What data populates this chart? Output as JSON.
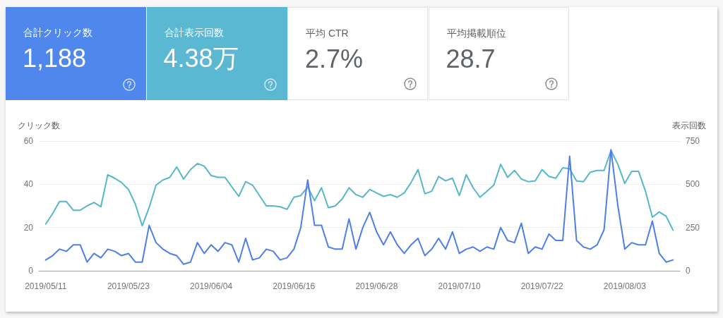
{
  "chart_data": [
    {
      "type": "other",
      "title": "合計クリック数",
      "annotations": [
        "1,188"
      ],
      "color": "#4f87ec"
    },
    {
      "type": "other",
      "title": "合計表示回数",
      "annotations": [
        "4.38万"
      ],
      "color": "#5ab8d3"
    },
    {
      "type": "other",
      "title": "平均 CTR",
      "annotations": [
        "2.7%"
      ]
    },
    {
      "type": "other",
      "title": "平均掲載順位",
      "annotations": [
        "28.7"
      ]
    },
    {
      "type": "line",
      "ylabel": "クリック数",
      "y2label": "表示回数",
      "x": [
        "2019-05-11",
        "2019-05-12",
        "2019-05-13",
        "2019-05-14",
        "2019-05-15",
        "2019-05-16",
        "2019-05-17",
        "2019-05-18",
        "2019-05-19",
        "2019-05-20",
        "2019-05-21",
        "2019-05-22",
        "2019-05-23",
        "2019-05-24",
        "2019-05-25",
        "2019-05-26",
        "2019-05-27",
        "2019-05-28",
        "2019-05-29",
        "2019-05-30",
        "2019-05-31",
        "2019-06-01",
        "2019-06-02",
        "2019-06-03",
        "2019-06-04",
        "2019-06-05",
        "2019-06-06",
        "2019-06-07",
        "2019-06-08",
        "2019-06-09",
        "2019-06-10",
        "2019-06-11",
        "2019-06-12",
        "2019-06-13",
        "2019-06-14",
        "2019-06-15",
        "2019-06-16",
        "2019-06-17",
        "2019-06-18",
        "2019-06-19",
        "2019-06-20",
        "2019-06-21",
        "2019-06-22",
        "2019-06-23",
        "2019-06-24",
        "2019-06-25",
        "2019-06-26",
        "2019-06-27",
        "2019-06-28",
        "2019-06-29",
        "2019-06-30",
        "2019-07-01",
        "2019-07-02",
        "2019-07-03",
        "2019-07-04",
        "2019-07-05",
        "2019-07-06",
        "2019-07-07",
        "2019-07-08",
        "2019-07-09",
        "2019-07-10",
        "2019-07-11",
        "2019-07-12",
        "2019-07-13",
        "2019-07-14",
        "2019-07-15",
        "2019-07-16",
        "2019-07-17",
        "2019-07-18",
        "2019-07-19",
        "2019-07-20",
        "2019-07-21",
        "2019-07-22",
        "2019-07-23",
        "2019-07-24",
        "2019-07-25",
        "2019-07-26",
        "2019-07-27",
        "2019-07-28",
        "2019-07-29",
        "2019-07-30",
        "2019-07-31",
        "2019-08-01",
        "2019-08-02",
        "2019-08-03",
        "2019-08-04",
        "2019-08-05",
        "2019-08-06",
        "2019-08-07",
        "2019-08-08",
        "2019-08-09",
        "2019-08-10"
      ],
      "series": [
        {
          "color": "#4e7fe8",
          "values": [
            5,
            7,
            10,
            9,
            12,
            12,
            4,
            8,
            6,
            10,
            9,
            7,
            8,
            4,
            4,
            21,
            13,
            10,
            8,
            7,
            3,
            4,
            13,
            8,
            12,
            9,
            13,
            12,
            4,
            15,
            5,
            6,
            10,
            9,
            5,
            6,
            10,
            20,
            42,
            21,
            21,
            11,
            10,
            10,
            24,
            10,
            20,
            27,
            18,
            12,
            18,
            12,
            8,
            12,
            15,
            7,
            10,
            15,
            10,
            18,
            8,
            10,
            11,
            9,
            11,
            10,
            20,
            14,
            13,
            22,
            8,
            11,
            10,
            17,
            14,
            14,
            53,
            14,
            11,
            10,
            12,
            19,
            56,
            30,
            10,
            13,
            12,
            12,
            23,
            8,
            4,
            5
          ]
        },
        {
          "color": "#55b7c9",
          "axis": "y2",
          "values": [
            270,
            330,
            400,
            400,
            350,
            350,
            375,
            395,
            370,
            555,
            535,
            510,
            470,
            385,
            260,
            365,
            495,
            525,
            540,
            600,
            530,
            585,
            620,
            605,
            550,
            540,
            540,
            485,
            430,
            515,
            495,
            435,
            375,
            375,
            370,
            355,
            425,
            435,
            485,
            405,
            480,
            365,
            375,
            415,
            480,
            440,
            425,
            470,
            450,
            430,
            440,
            425,
            450,
            510,
            585,
            445,
            460,
            545,
            520,
            535,
            435,
            555,
            480,
            425,
            460,
            495,
            615,
            540,
            580,
            530,
            515,
            520,
            585,
            545,
            535,
            595,
            590,
            520,
            515,
            570,
            580,
            580,
            695,
            615,
            505,
            575,
            575,
            460,
            310,
            340,
            315,
            235
          ]
        }
      ],
      "xlim": [
        "2019-05-10",
        "2019-08-11"
      ],
      "xticks": [
        {
          "value": "2019-05-11",
          "label": "2019/05/11"
        },
        {
          "value": "2019-05-23",
          "label": "2019/05/23"
        },
        {
          "value": "2019-06-04",
          "label": "2019/06/04"
        },
        {
          "value": "2019-06-16",
          "label": "2019/06/16"
        },
        {
          "value": "2019-06-28",
          "label": "2019/06/28"
        },
        {
          "value": "2019-07-10",
          "label": "2019/07/10"
        },
        {
          "value": "2019-07-22",
          "label": "2019/07/22"
        },
        {
          "value": "2019-08-03",
          "label": "2019/08/03"
        }
      ],
      "ylim": [
        0,
        60
      ],
      "yticks": [
        0,
        20,
        40,
        60
      ],
      "y2lim": [
        0,
        750
      ],
      "y2ticks": [
        0,
        250,
        500,
        750
      ],
      "grid": "y"
    }
  ]
}
